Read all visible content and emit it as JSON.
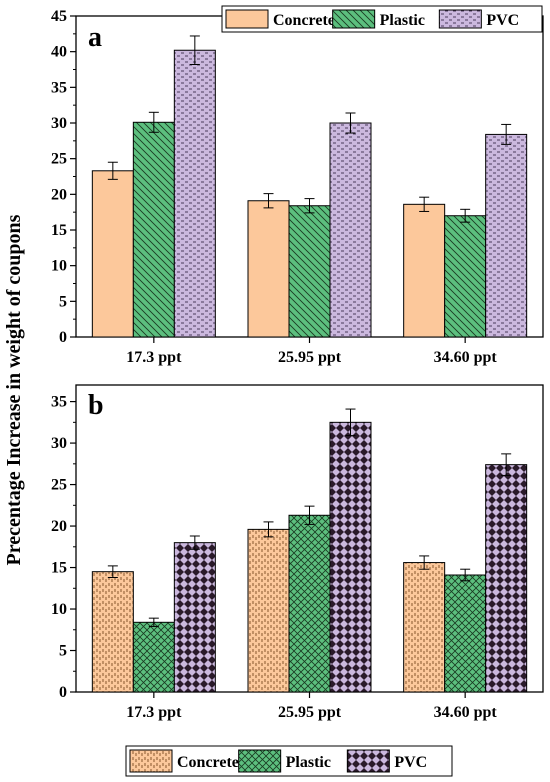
{
  "ylabel": "Precentage Increase in weight of coupons",
  "chart_data": [
    {
      "type": "bar",
      "panel_label": "a",
      "categories": [
        "17.3 ppt",
        "25.95 ppt",
        "34.60 ppt"
      ],
      "ylim": [
        0,
        45
      ],
      "yticks": [
        0,
        5,
        10,
        15,
        20,
        25,
        30,
        35,
        40,
        45
      ],
      "legend_position": "top-right",
      "series": [
        {
          "name": "Concrete",
          "values": [
            23.3,
            19.1,
            18.6
          ],
          "errors": [
            1.2,
            1.0,
            1.0
          ],
          "color": "#fcc89b",
          "pattern": "none"
        },
        {
          "name": "Plastic",
          "values": [
            30.1,
            18.4,
            17.0
          ],
          "errors": [
            1.4,
            1.0,
            0.9
          ],
          "color": "#5cbf7e",
          "pattern": "diagonal-lines"
        },
        {
          "name": "PVC",
          "values": [
            40.2,
            30.0,
            28.4
          ],
          "errors": [
            2.0,
            1.4,
            1.4
          ],
          "color": "#cbb8de",
          "pattern": "dashes"
        }
      ]
    },
    {
      "type": "bar",
      "panel_label": "b",
      "categories": [
        "17.3 ppt",
        "25.95 ppt",
        "34.60 ppt"
      ],
      "ylim": [
        0,
        37
      ],
      "yticks": [
        0,
        5,
        10,
        15,
        20,
        25,
        30,
        35
      ],
      "legend_position": "bottom",
      "series": [
        {
          "name": "Concrete",
          "values": [
            14.5,
            19.6,
            15.6
          ],
          "errors": [
            0.7,
            0.9,
            0.8
          ],
          "color": "#fcc89b",
          "pattern": "dots"
        },
        {
          "name": "Plastic",
          "values": [
            8.4,
            21.3,
            14.1
          ],
          "errors": [
            0.5,
            1.1,
            0.7
          ],
          "color": "#5cbf7e",
          "pattern": "cross-hatch"
        },
        {
          "name": "PVC",
          "values": [
            18.0,
            32.5,
            27.4
          ],
          "errors": [
            0.8,
            1.6,
            1.3
          ],
          "color": "#cbb8de",
          "pattern": "checker"
        }
      ]
    }
  ]
}
